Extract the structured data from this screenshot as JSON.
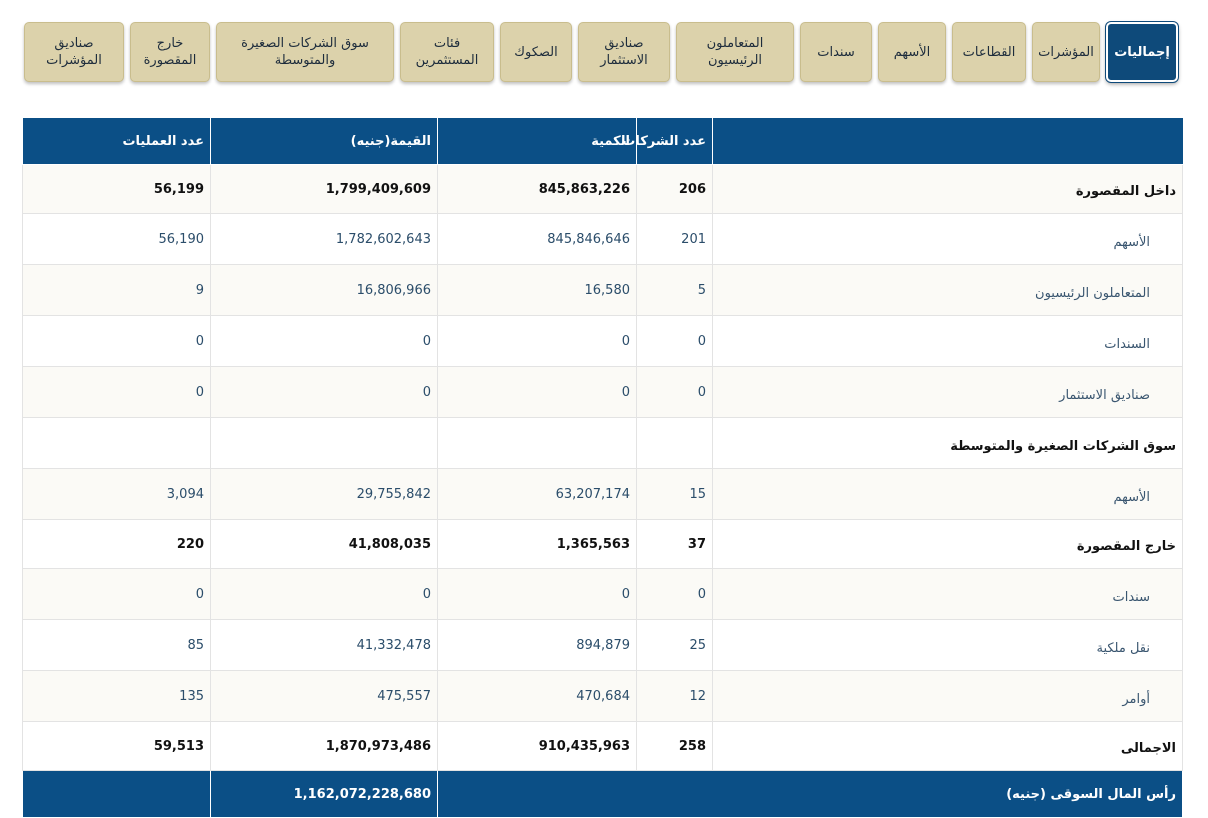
{
  "tabs": [
    {
      "label": "إجماليات",
      "active": true
    },
    {
      "label": "المؤشرات"
    },
    {
      "label": "القطاعات"
    },
    {
      "label": "الأسهم"
    },
    {
      "label": "سندات"
    },
    {
      "label": "المتعاملون\nالرئيسيون"
    },
    {
      "label": "صناديق\nالاستثمار"
    },
    {
      "label": "الصكوك"
    },
    {
      "label": "فئات\nالمستثمرين"
    },
    {
      "label": "سوق الشركات الصغيرة\nوالمتوسطة"
    },
    {
      "label": "خارج\nالمقصورة"
    },
    {
      "label": "صناديق\nالمؤشرات"
    }
  ],
  "table": {
    "headers": {
      "count": "عدد الشركات",
      "quantity": "الكمية",
      "value": "القيمة(جنيه)",
      "operations": "عدد العمليات"
    },
    "rows": [
      {
        "label": "داخل المقصورة",
        "count": "206",
        "quantity": "845,863,226",
        "value": "1,799,409,609",
        "operations": "56,199",
        "style": "bold"
      },
      {
        "label": "الأسهم",
        "count": "201",
        "quantity": "845,846,646",
        "value": "1,782,602,643",
        "operations": "56,190"
      },
      {
        "label": "المتعاملون الرئيسيون",
        "count": "5",
        "quantity": "16,580",
        "value": "16,806,966",
        "operations": "9"
      },
      {
        "label": "السندات",
        "count": "0",
        "quantity": "0",
        "value": "0",
        "operations": "0"
      },
      {
        "label": "صناديق الاستثمار",
        "count": "0",
        "quantity": "0",
        "value": "0",
        "operations": "0"
      },
      {
        "label": "سوق الشركات الصغيرة والمتوسطة",
        "count": "",
        "quantity": "",
        "value": "",
        "operations": "",
        "style": "group"
      },
      {
        "label": "الأسهم",
        "count": "15",
        "quantity": "63,207,174",
        "value": "29,755,842",
        "operations": "3,094"
      },
      {
        "label": "خارج المقصورة",
        "count": "37",
        "quantity": "1,365,563",
        "value": "41,808,035",
        "operations": "220",
        "style": "bold"
      },
      {
        "label": "سندات",
        "count": "0",
        "quantity": "0",
        "value": "0",
        "operations": "0"
      },
      {
        "label": "نقل ملكية",
        "count": "25",
        "quantity": "894,879",
        "value": "41,332,478",
        "operations": "85"
      },
      {
        "label": "أوامر",
        "count": "12",
        "quantity": "470,684",
        "value": "475,557",
        "operations": "135"
      },
      {
        "label": "الاجمالى",
        "count": "258",
        "quantity": "910,435,963",
        "value": "1,870,973,486",
        "operations": "59,513",
        "style": "bold"
      }
    ],
    "footer": {
      "label": "رأس المال السوقى (جنيه)",
      "value": "1,162,072,228,680"
    }
  },
  "colors": {
    "header_bg": "#0b4f86",
    "tab_bg": "#dcd2ab",
    "tab_active_bg": "#0e4a7a"
  }
}
